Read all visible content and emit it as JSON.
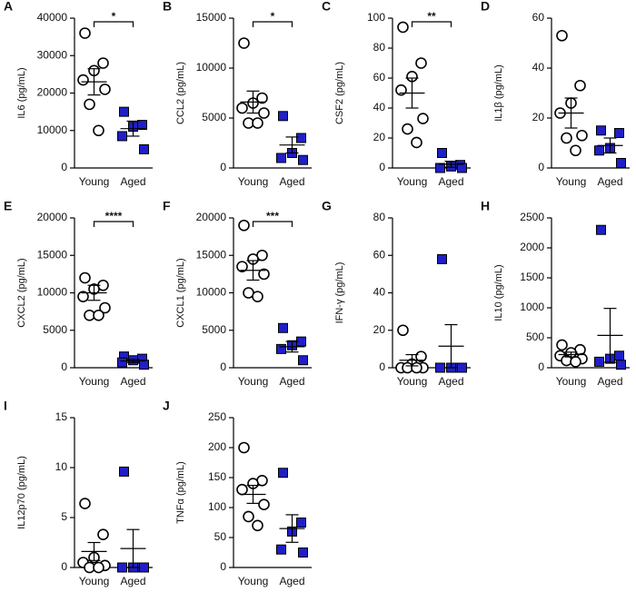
{
  "chart_data": [
    {
      "type": "strip",
      "panel": "A",
      "ylabel": "IL6 (pg/mL)",
      "categories": [
        "Young",
        "Aged"
      ],
      "ylim": [
        0,
        40000
      ],
      "yticks": [
        0,
        10000,
        20000,
        30000,
        40000
      ],
      "significance": "*",
      "series": [
        {
          "name": "Young",
          "color": "#ffffff",
          "values": [
            36000,
            28000,
            26000,
            23500,
            21000,
            17000,
            10000
          ],
          "mean": 23000,
          "error": 3500
        },
        {
          "name": "Aged",
          "color": "#1f1fc8",
          "values": [
            15000,
            11500,
            11000,
            8500,
            5000
          ],
          "mean": 10500,
          "error": 2000
        }
      ]
    },
    {
      "type": "strip",
      "panel": "B",
      "ylabel": "CCL2 (pg/mL)",
      "categories": [
        "Young",
        "Aged"
      ],
      "ylim": [
        0,
        15000
      ],
      "yticks": [
        0,
        5000,
        10000,
        15000
      ],
      "significance": "*",
      "series": [
        {
          "name": "Young",
          "color": "#ffffff",
          "values": [
            12500,
            7000,
            6500,
            6000,
            5500,
            4500,
            4500
          ],
          "mean": 6600,
          "error": 1100
        },
        {
          "name": "Aged",
          "color": "#1f1fc8",
          "values": [
            5200,
            3000,
            1500,
            1000,
            800
          ],
          "mean": 2300,
          "error": 800
        }
      ]
    },
    {
      "type": "strip",
      "panel": "C",
      "ylabel": "CSF2 (pg/mL)",
      "categories": [
        "Young",
        "Aged"
      ],
      "ylim": [
        0,
        100
      ],
      "yticks": [
        0,
        20,
        40,
        60,
        80,
        100
      ],
      "significance": "**",
      "series": [
        {
          "name": "Young",
          "color": "#ffffff",
          "values": [
            94,
            70,
            61,
            52,
            33,
            26,
            17
          ],
          "mean": 50,
          "error": 10
        },
        {
          "name": "Aged",
          "color": "#1f1fc8",
          "values": [
            10,
            2,
            1,
            0,
            0
          ],
          "mean": 2.5,
          "error": 2
        }
      ]
    },
    {
      "type": "strip",
      "panel": "D",
      "ylabel": "IL1β (pg/mL)",
      "categories": [
        "Young",
        "Aged"
      ],
      "ylim": [
        0,
        60
      ],
      "yticks": [
        0,
        20,
        40,
        60
      ],
      "series": [
        {
          "name": "Young",
          "color": "#ffffff",
          "values": [
            53,
            33,
            26,
            22,
            13,
            12,
            7
          ],
          "mean": 22,
          "error": 6
        },
        {
          "name": "Aged",
          "color": "#1f1fc8",
          "values": [
            15,
            14,
            8,
            7,
            2
          ],
          "mean": 9,
          "error": 3
        }
      ]
    },
    {
      "type": "strip",
      "panel": "E",
      "ylabel": "CXCL2 (pg/mL)",
      "categories": [
        "Young",
        "Aged"
      ],
      "ylim": [
        0,
        20000
      ],
      "yticks": [
        0,
        5000,
        10000,
        15000,
        20000
      ],
      "significance": "****",
      "series": [
        {
          "name": "Young",
          "color": "#ffffff",
          "values": [
            12000,
            11000,
            10500,
            9500,
            8000,
            7000,
            7000
          ],
          "mean": 10000,
          "error": 1000
        },
        {
          "name": "Aged",
          "color": "#1f1fc8",
          "values": [
            1500,
            1200,
            1000,
            700,
            400
          ],
          "mean": 900,
          "error": 200
        }
      ]
    },
    {
      "type": "strip",
      "panel": "F",
      "ylabel": "CXCL1 (pg/mL)",
      "categories": [
        "Young",
        "Aged"
      ],
      "ylim": [
        0,
        20000
      ],
      "yticks": [
        0,
        5000,
        10000,
        15000,
        20000
      ],
      "significance": "***",
      "series": [
        {
          "name": "Young",
          "color": "#ffffff",
          "values": [
            19000,
            15000,
            14500,
            13500,
            12500,
            10000,
            9500
          ],
          "mean": 13000,
          "error": 1300
        },
        {
          "name": "Aged",
          "color": "#1f1fc8",
          "values": [
            5300,
            3500,
            3000,
            2500,
            1000
          ],
          "mean": 2800,
          "error": 700
        }
      ]
    },
    {
      "type": "strip",
      "panel": "G",
      "ylabel": "IFN-γ (pg/mL)",
      "categories": [
        "Young",
        "Aged"
      ],
      "ylim": [
        0,
        80
      ],
      "yticks": [
        0,
        20,
        40,
        60,
        80
      ],
      "series": [
        {
          "name": "Young",
          "color": "#ffffff",
          "values": [
            20,
            6,
            2,
            0,
            0,
            0,
            0
          ],
          "mean": 4,
          "error": 3
        },
        {
          "name": "Aged",
          "color": "#1f1fc8",
          "values": [
            58,
            0,
            0,
            0,
            0
          ],
          "mean": 11.5,
          "error": 11.5
        }
      ]
    },
    {
      "type": "strip",
      "panel": "H",
      "ylabel": "IL10 (pg/mL)",
      "categories": [
        "Young",
        "Aged"
      ],
      "ylim": [
        0,
        2500
      ],
      "yticks": [
        0,
        500,
        1000,
        1500,
        2000,
        2500
      ],
      "series": [
        {
          "name": "Young",
          "color": "#ffffff",
          "values": [
            380,
            300,
            250,
            200,
            150,
            120,
            100
          ],
          "mean": 220,
          "error": 40
        },
        {
          "name": "Aged",
          "color": "#1f1fc8",
          "values": [
            2300,
            200,
            150,
            100,
            50
          ],
          "mean": 540,
          "error": 450
        }
      ]
    },
    {
      "type": "strip",
      "panel": "I",
      "ylabel": "IL12p70 (pg/mL)",
      "categories": [
        "Young",
        "Aged"
      ],
      "ylim": [
        0,
        15
      ],
      "yticks": [
        0,
        5,
        10,
        15
      ],
      "series": [
        {
          "name": "Young",
          "color": "#ffffff",
          "values": [
            6.4,
            3.3,
            1,
            0.5,
            0.2,
            0,
            0
          ],
          "mean": 1.6,
          "error": 0.9
        },
        {
          "name": "Aged",
          "color": "#1f1fc8",
          "values": [
            9.6,
            0,
            0,
            0,
            0
          ],
          "mean": 1.9,
          "error": 1.9
        }
      ]
    },
    {
      "type": "strip",
      "panel": "J",
      "ylabel": "TNFα (pg/mL)",
      "categories": [
        "Young",
        "Aged"
      ],
      "ylim": [
        0,
        250
      ],
      "yticks": [
        0,
        50,
        100,
        150,
        200,
        250
      ],
      "series": [
        {
          "name": "Young",
          "color": "#ffffff",
          "values": [
            200,
            145,
            140,
            130,
            105,
            85,
            70
          ],
          "mean": 122,
          "error": 15
        },
        {
          "name": "Aged",
          "color": "#1f1fc8",
          "values": [
            158,
            75,
            60,
            30,
            25
          ],
          "mean": 65,
          "error": 23
        }
      ]
    }
  ]
}
